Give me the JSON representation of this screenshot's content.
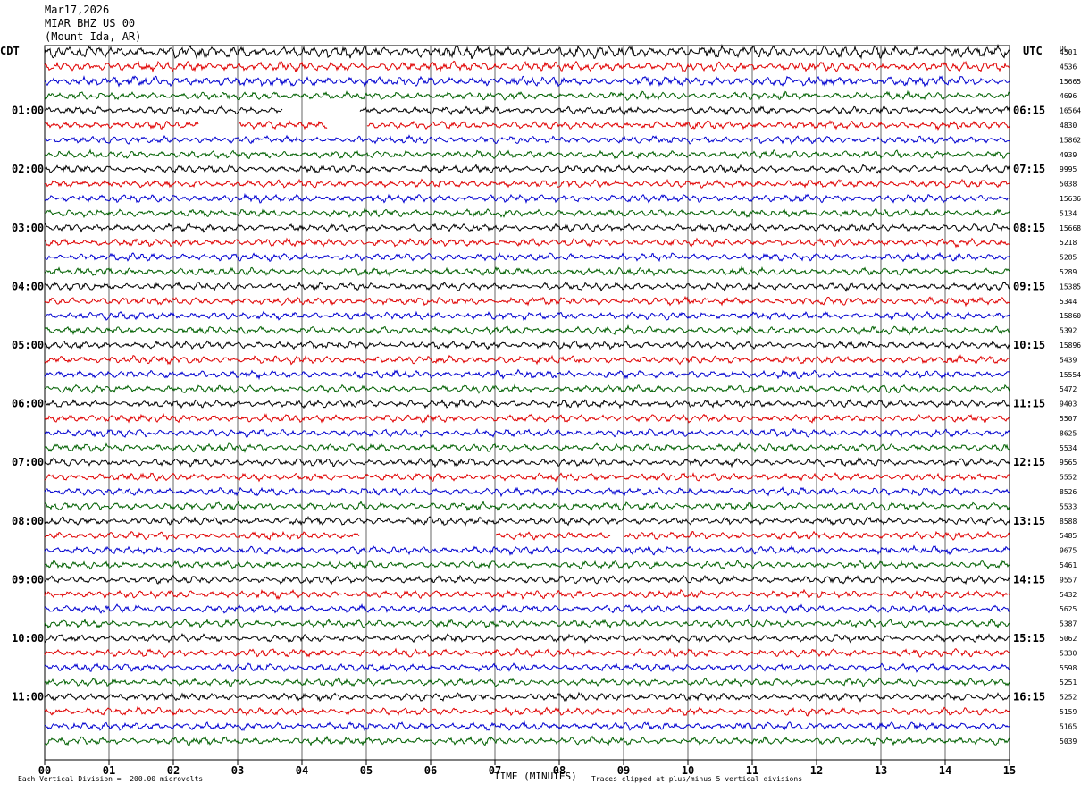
{
  "header": {
    "date": "Mar17,2026",
    "station": "MIAR BHZ US 00",
    "location": "(Mount Ida, AR)"
  },
  "left_tz": "CDT",
  "right_tz": "UTC",
  "dc_label": "DC",
  "chart_data": {
    "type": "helicorder",
    "xlabel": "TIME (MINUTES)",
    "x_ticks": [
      "00",
      "01",
      "02",
      "03",
      "04",
      "05",
      "06",
      "07",
      "08",
      "09",
      "10",
      "11",
      "12",
      "13",
      "14",
      "15"
    ],
    "xlim": [
      0,
      15
    ],
    "trace_minutes": 15,
    "trace_colors": [
      "#000000",
      "#e00000",
      "#0000d0",
      "#006000"
    ],
    "left_hour_labels": [
      "01:00",
      "02:00",
      "03:00",
      "04:00",
      "05:00",
      "06:00",
      "07:00",
      "08:00",
      "09:00",
      "10:00",
      "11:00"
    ],
    "right_hour_labels": [
      "06:15",
      "07:15",
      "08:15",
      "09:15",
      "10:15",
      "11:15",
      "12:15",
      "13:15",
      "14:15",
      "15:15",
      "16:15"
    ],
    "dc_offsets": [
      "4501",
      "4536",
      "15665",
      "4696",
      "16564",
      "4830",
      "15862",
      "4939",
      "9995",
      "5038",
      "15636",
      "5134",
      "15668",
      "5218",
      "5285",
      "5289",
      "15385",
      "5344",
      "15860",
      "5392",
      "15896",
      "5439",
      "15554",
      "5472",
      "9403",
      "5507",
      "8625",
      "5534",
      "9565",
      "5552",
      "8526",
      "5533",
      "8588",
      "5485",
      "9675",
      "5461",
      "9557",
      "5432",
      "5625",
      "5387",
      "5062",
      "5330",
      "5598",
      "5251",
      "5252",
      "5159",
      "5165",
      "5039"
    ],
    "gaps": [
      {
        "trace": 5,
        "start": 2.4,
        "end": 3.0
      },
      {
        "trace": 5,
        "start": 4.4,
        "end": 5.0
      },
      {
        "trace": 4,
        "start": 3.7,
        "end": 4.9
      },
      {
        "trace": 33,
        "start": 4.9,
        "end": 7.0
      },
      {
        "trace": 33,
        "start": 8.8,
        "end": 9.0
      }
    ]
  },
  "footer": {
    "scale": "Each Vertical Division =  200.00 microvolts",
    "clip": "Traces clipped at plus/minus 5 vertical divisions"
  }
}
